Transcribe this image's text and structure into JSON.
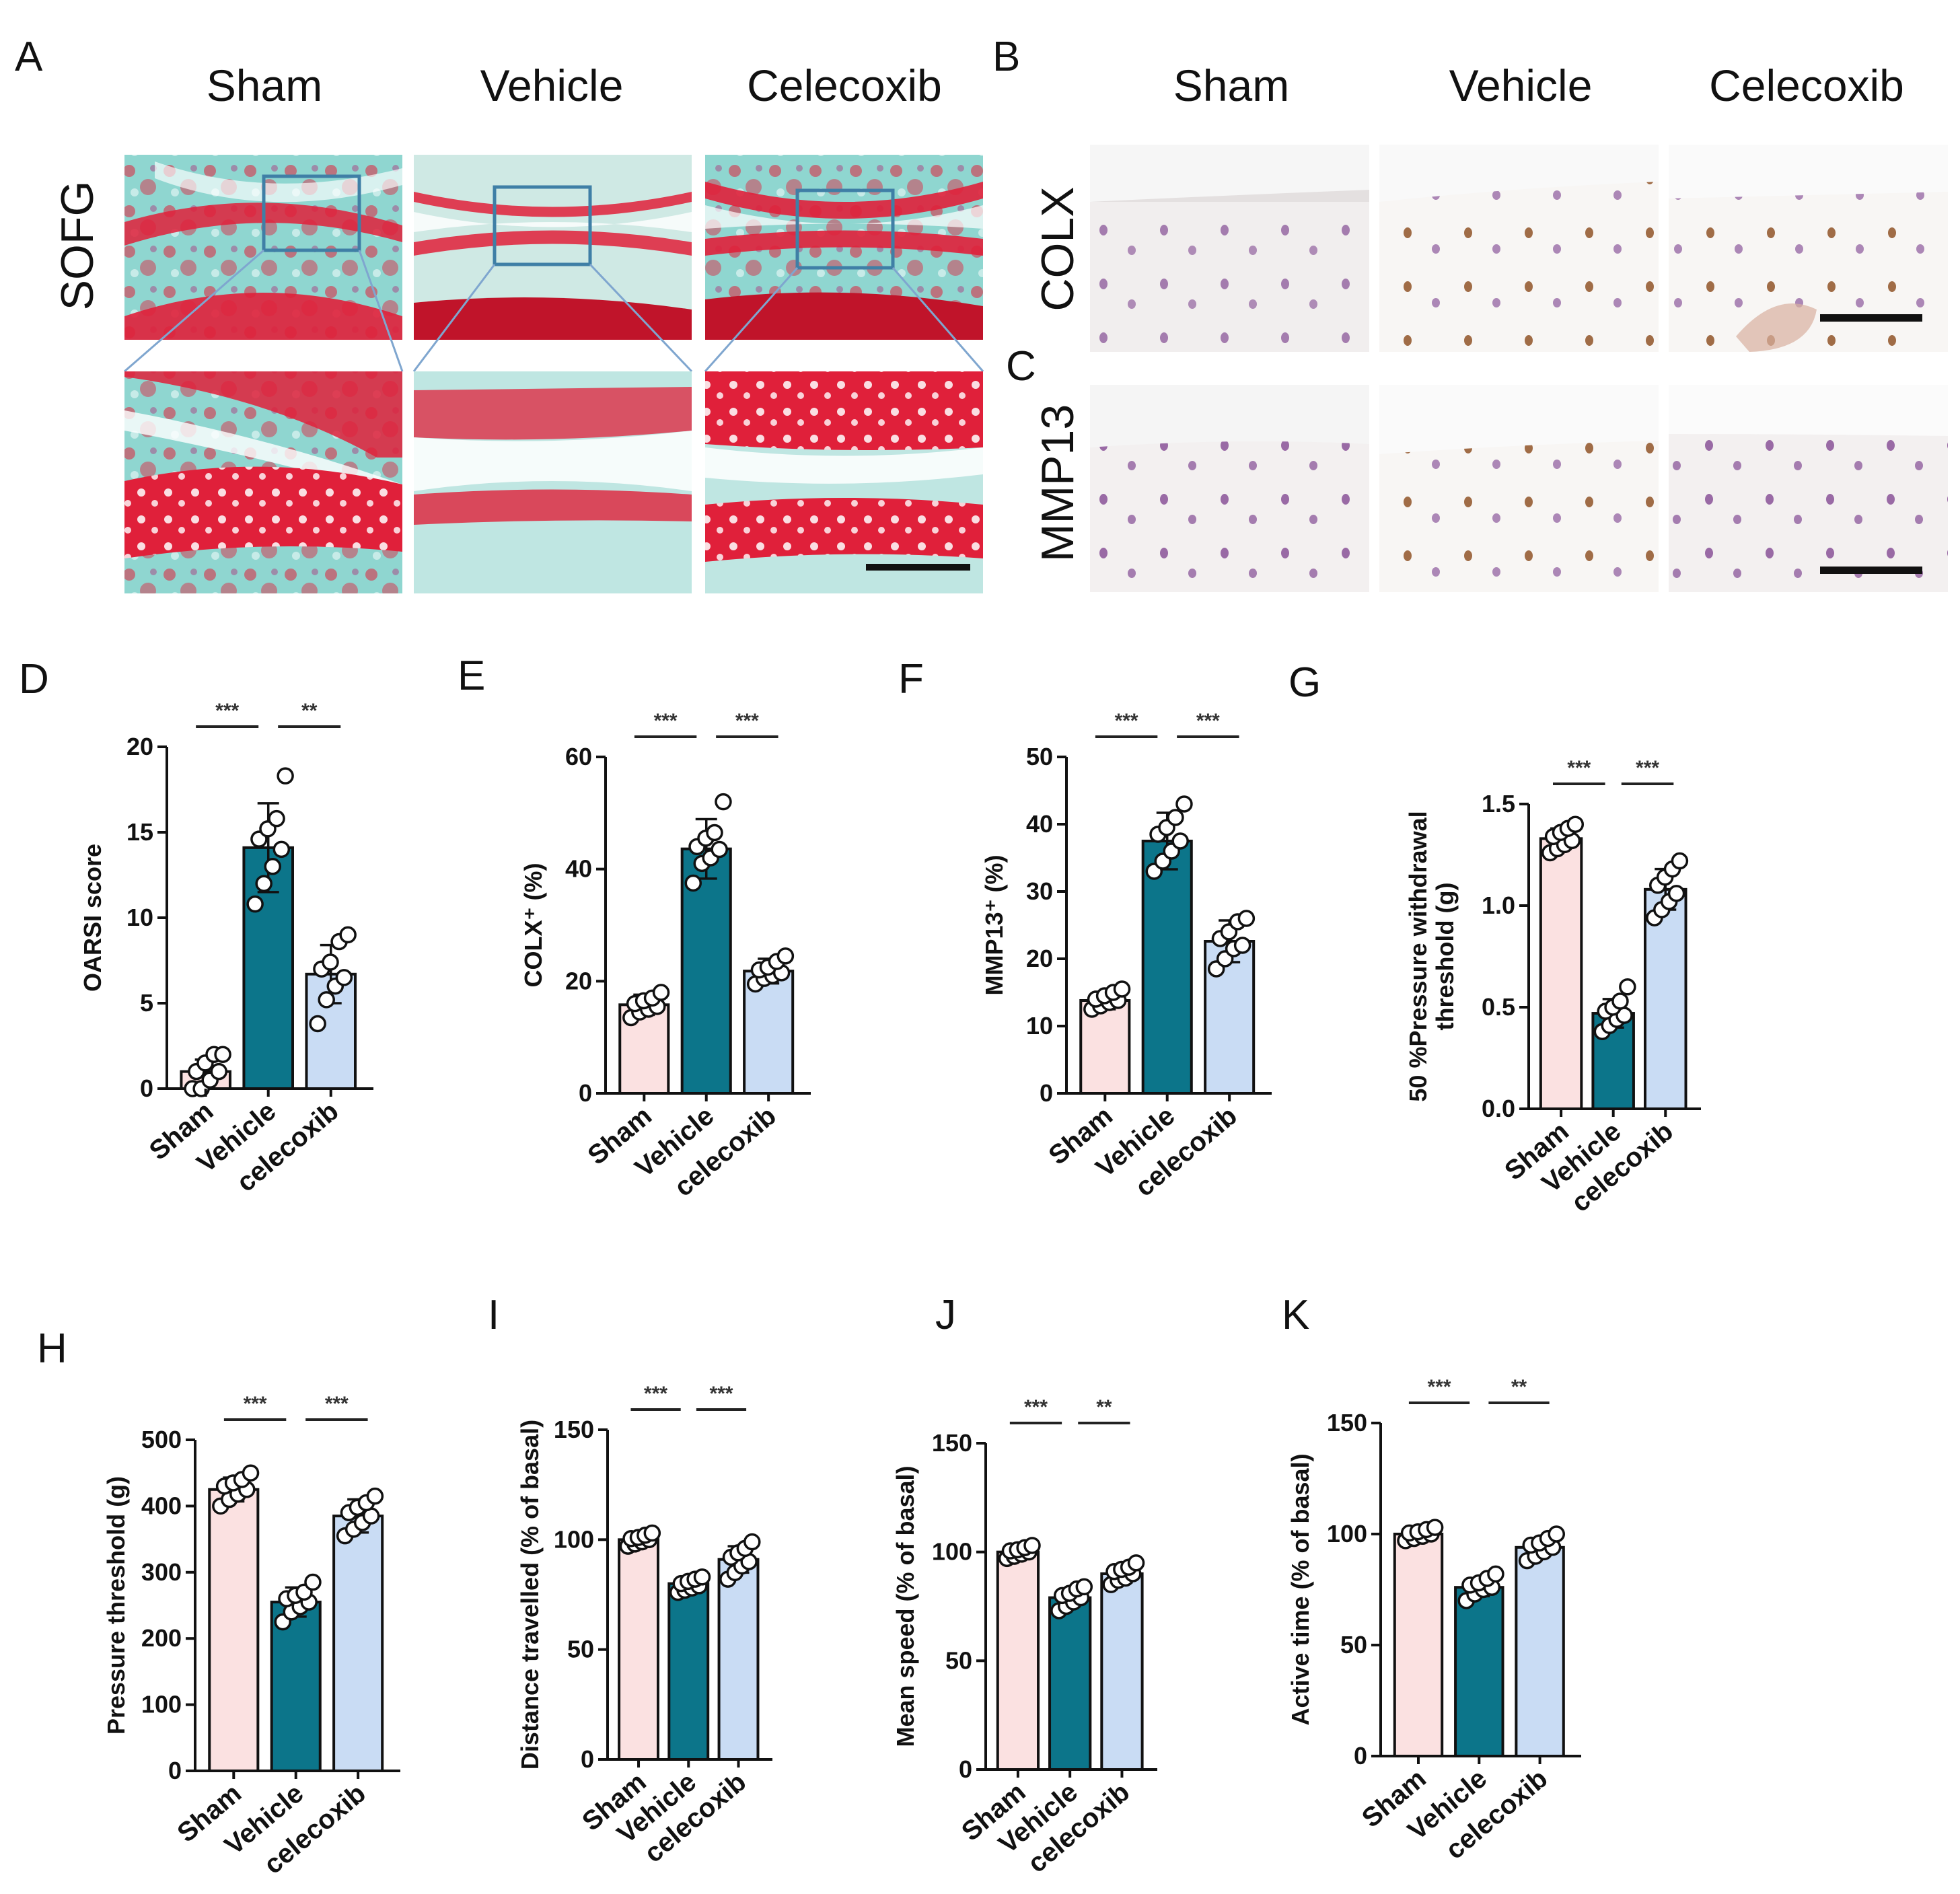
{
  "histology": {
    "panel_a": {
      "letter": "A",
      "columns": [
        "Sham",
        "Vehicle",
        "Celecoxib"
      ],
      "row_label": "SOFG"
    },
    "panel_b": {
      "letter": "B",
      "columns": [
        "Sham",
        "Vehicle",
        "Celecoxib"
      ],
      "row_label": "COLX"
    },
    "panel_c": {
      "letter": "C",
      "row_label": "MMP13"
    },
    "colors": {
      "safranin": "#e0203a",
      "fast_green": "#8fd6d0",
      "ihc_background": "#f3f0f0",
      "nucleus": "#7a3d8c",
      "brown_stain": "#8a4a1a",
      "zoom_box": "#3f7fa6",
      "zoom_line": "#7fa6cf"
    }
  },
  "chart_data": [
    {
      "id": "D",
      "letter": "D",
      "type": "bar",
      "categories": [
        "Sham",
        "Vehicle",
        "celecoxib"
      ],
      "values": [
        1.0,
        14.1,
        6.7
      ],
      "errors": [
        0.7,
        2.6,
        1.7
      ],
      "points": [
        [
          0,
          0,
          0.5,
          1,
          1,
          1.5,
          2,
          2
        ],
        [
          10.8,
          12,
          13,
          14,
          14.6,
          15.2,
          15.8,
          18.3
        ],
        [
          3.8,
          5.2,
          6,
          6.5,
          7,
          7.4,
          8.6,
          9
        ]
      ],
      "ylabel": "OARSI score",
      "ylim": [
        0,
        20
      ],
      "yticks": [
        0,
        5,
        10,
        15,
        20
      ],
      "significance": [
        {
          "from": 0,
          "to": 1,
          "label": "***"
        },
        {
          "from": 1,
          "to": 2,
          "label": "**"
        }
      ]
    },
    {
      "id": "E",
      "letter": "E",
      "type": "bar",
      "categories": [
        "Sham",
        "Vehicle",
        "celecoxib"
      ],
      "values": [
        15.8,
        43.6,
        21.8
      ],
      "errors": [
        1.8,
        5.3,
        2.2
      ],
      "points": [
        [
          13.5,
          14.5,
          15,
          15.5,
          16,
          16.5,
          17,
          18
        ],
        [
          37.5,
          41,
          42,
          43.5,
          44,
          45.5,
          46.5,
          52
        ],
        [
          19.5,
          20.5,
          21,
          21.5,
          22,
          22.5,
          23.5,
          24.5
        ]
      ],
      "ylabel": "COLX⁺ (%)",
      "ylim": [
        0,
        60
      ],
      "yticks": [
        0,
        20,
        40,
        60
      ],
      "significance": [
        {
          "from": 0,
          "to": 1,
          "label": "***"
        },
        {
          "from": 1,
          "to": 2,
          "label": "***"
        }
      ]
    },
    {
      "id": "F",
      "letter": "F",
      "type": "bar",
      "categories": [
        "Sham",
        "Vehicle",
        "celecoxib"
      ],
      "values": [
        13.8,
        37.5,
        22.6
      ],
      "errors": [
        1.3,
        4.2,
        3.1
      ],
      "points": [
        [
          12.5,
          13,
          13.5,
          13.8,
          14,
          14.5,
          15,
          15.5
        ],
        [
          33,
          34.5,
          36,
          37.5,
          38.5,
          39.5,
          41,
          43
        ],
        [
          18.5,
          20,
          21.5,
          22,
          23,
          24,
          25.5,
          26
        ]
      ],
      "ylabel": "MMP13⁺ (%)",
      "ylim": [
        0,
        50
      ],
      "yticks": [
        0,
        10,
        20,
        30,
        40,
        50
      ],
      "significance": [
        {
          "from": 0,
          "to": 1,
          "label": "***"
        },
        {
          "from": 1,
          "to": 2,
          "label": "***"
        }
      ]
    },
    {
      "id": "G",
      "letter": "G",
      "type": "bar",
      "categories": [
        "Sham",
        "Vehicle",
        "celecoxib"
      ],
      "values": [
        1.33,
        0.47,
        1.08
      ],
      "errors": [
        0.05,
        0.07,
        0.1
      ],
      "points": [
        [
          1.26,
          1.28,
          1.3,
          1.32,
          1.34,
          1.36,
          1.38,
          1.4
        ],
        [
          0.38,
          0.41,
          0.44,
          0.46,
          0.48,
          0.5,
          0.53,
          0.6
        ],
        [
          0.94,
          0.98,
          1.02,
          1.06,
          1.1,
          1.14,
          1.18,
          1.22
        ]
      ],
      "ylabel": "50 %Pressure withdrawal threshold (g)",
      "ylabel_lines": [
        "50 %Pressure withdrawal",
        "threshold (g)"
      ],
      "ylim": [
        0,
        1.5
      ],
      "yticks": [
        0.0,
        0.5,
        1.0,
        1.5
      ],
      "tick_decimals": 1,
      "significance": [
        {
          "from": 0,
          "to": 1,
          "label": "***"
        },
        {
          "from": 1,
          "to": 2,
          "label": "***"
        }
      ]
    },
    {
      "id": "H",
      "letter": "H",
      "type": "bar",
      "categories": [
        "Sham",
        "Vehicle",
        "celecoxib"
      ],
      "values": [
        425,
        255,
        385
      ],
      "errors": [
        18,
        22,
        25
      ],
      "points": [
        [
          400,
          410,
          418,
          425,
          430,
          435,
          440,
          450
        ],
        [
          225,
          240,
          248,
          255,
          260,
          265,
          270,
          285
        ],
        [
          355,
          365,
          375,
          385,
          390,
          398,
          405,
          415
        ]
      ],
      "ylabel": "Pressure threshold (g)",
      "ylim": [
        0,
        500
      ],
      "yticks": [
        0,
        100,
        200,
        300,
        400,
        500
      ],
      "significance": [
        {
          "from": 0,
          "to": 1,
          "label": "***"
        },
        {
          "from": 1,
          "to": 2,
          "label": "***"
        }
      ]
    },
    {
      "id": "I",
      "letter": "I",
      "type": "bar",
      "categories": [
        "Sham",
        "Vehicle",
        "celecoxib"
      ],
      "values": [
        100,
        80,
        91
      ],
      "errors": [
        3,
        3,
        6
      ],
      "points": [
        [
          97,
          98,
          99,
          100,
          100.5,
          101,
          102,
          103
        ],
        [
          76,
          77,
          78,
          79,
          80,
          81,
          82,
          83
        ],
        [
          82,
          85,
          88,
          90,
          92,
          94,
          96,
          99
        ]
      ],
      "ylabel": "Distance travelled (% of basal)",
      "ylim": [
        0,
        150
      ],
      "yticks": [
        0,
        50,
        100,
        150
      ],
      "significance": [
        {
          "from": 0,
          "to": 1,
          "label": "***"
        },
        {
          "from": 1,
          "to": 2,
          "label": "***"
        }
      ]
    },
    {
      "id": "J",
      "letter": "J",
      "type": "bar",
      "categories": [
        "Sham",
        "Vehicle",
        "celecoxib"
      ],
      "values": [
        100,
        79,
        90
      ],
      "errors": [
        3,
        4,
        4
      ],
      "points": [
        [
          97,
          98,
          99,
          100,
          100.5,
          101,
          102,
          103
        ],
        [
          73,
          75,
          77,
          79,
          80,
          81,
          83,
          84
        ],
        [
          85,
          87,
          88,
          90,
          91,
          92,
          93,
          95
        ]
      ],
      "ylabel": "Mean speed (% of basal)",
      "ylim": [
        0,
        150
      ],
      "yticks": [
        0,
        50,
        100,
        150
      ],
      "significance": [
        {
          "from": 0,
          "to": 1,
          "label": "***"
        },
        {
          "from": 1,
          "to": 2,
          "label": "**"
        }
      ]
    },
    {
      "id": "K",
      "letter": "K",
      "type": "bar",
      "categories": [
        "Sham",
        "Vehicle",
        "celecoxib"
      ],
      "values": [
        100,
        76,
        94
      ],
      "errors": [
        3,
        4,
        4
      ],
      "points": [
        [
          97,
          98,
          99,
          100,
          100.5,
          101,
          102,
          103
        ],
        [
          70,
          73,
          75,
          76,
          77,
          78,
          80,
          82
        ],
        [
          88,
          90,
          92,
          94,
          95,
          96,
          98,
          100
        ]
      ],
      "ylabel": "Active time (% of basal)",
      "ylim": [
        0,
        150
      ],
      "yticks": [
        0,
        50,
        100,
        150
      ],
      "significance": [
        {
          "from": 0,
          "to": 1,
          "label": "***"
        },
        {
          "from": 1,
          "to": 2,
          "label": "**"
        }
      ]
    }
  ],
  "bar_colors": [
    "#fbe1e1",
    "#0c758a",
    "#c9dcf4"
  ]
}
